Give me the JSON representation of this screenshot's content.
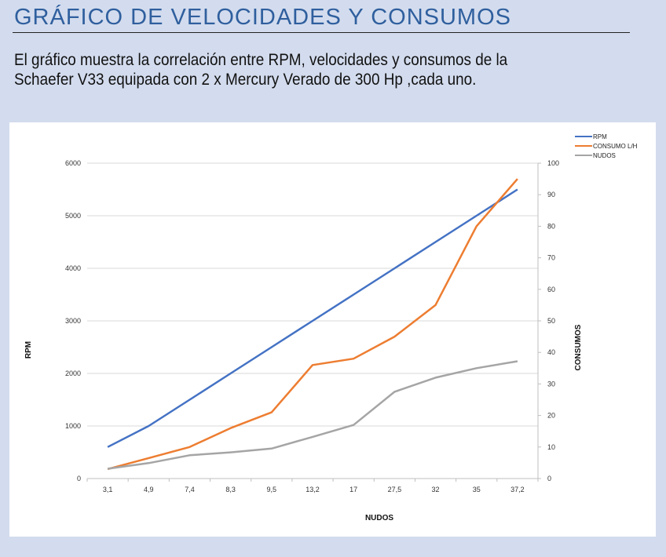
{
  "header": {
    "title": "GRÁFICO DE VELOCIDADES Y CONSUMOS",
    "description_line1": "El gráfico muestra la correlación entre RPM, velocidades y consumos de la",
    "description_line2": "Schaefer V33 equipada con 2 x Mercury Verado de 300 Hp ,cada uno."
  },
  "colors": {
    "title": "#2f5f9e",
    "background": "#d3dcee",
    "rpm": "#4472c4",
    "consumo": "#ed7d31",
    "nudos": "#a5a5a5"
  },
  "chart_data": {
    "type": "line",
    "title": "",
    "xlabel": "NUDOS",
    "ylabel_left": "RPM",
    "ylabel_right": "CONSUMOS",
    "categories": [
      "3,1",
      "4,9",
      "7,4",
      "8,3",
      "9,5",
      "13,2",
      "17",
      "27,5",
      "32",
      "35",
      "37,2"
    ],
    "left_axis": {
      "min": 0,
      "max": 6000,
      "ticks": [
        0,
        1000,
        2000,
        3000,
        4000,
        5000,
        6000
      ]
    },
    "right_axis": {
      "min": 0,
      "max": 100,
      "ticks": [
        0,
        10,
        20,
        30,
        40,
        50,
        60,
        70,
        80,
        90,
        100
      ]
    },
    "grid": true,
    "legend_position": "top-right",
    "series": [
      {
        "name": "RPM",
        "axis": "left",
        "color": "#4472c4",
        "values": [
          600,
          1000,
          1500,
          2000,
          2500,
          3000,
          3500,
          4000,
          4500,
          5000,
          5500
        ]
      },
      {
        "name": "CONSUMO L/H",
        "axis": "right",
        "color": "#ed7d31",
        "values": [
          3,
          6.5,
          10,
          16,
          21,
          36,
          38,
          45,
          55,
          80,
          95
        ]
      },
      {
        "name": "NUDOS",
        "axis": "right",
        "color": "#a5a5a5",
        "values": [
          3.1,
          4.9,
          7.4,
          8.3,
          9.5,
          13.2,
          17,
          27.5,
          32,
          35,
          37.2
        ]
      }
    ]
  }
}
